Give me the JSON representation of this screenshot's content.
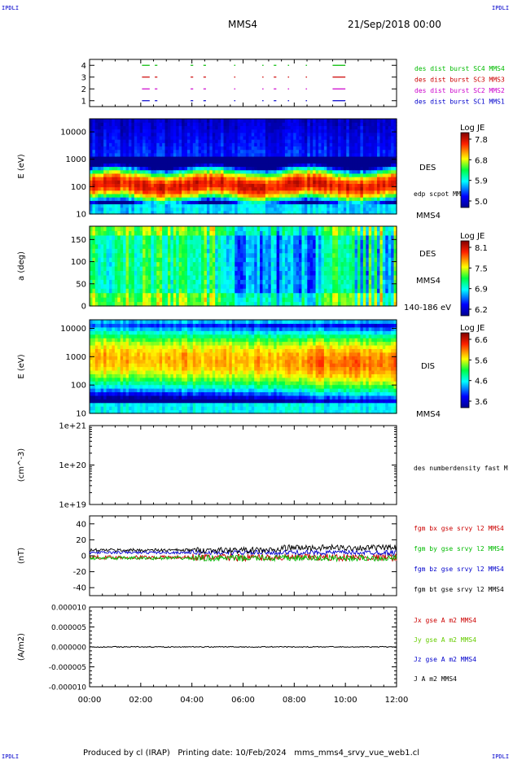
{
  "header": {
    "corner_tl": "IPDLI",
    "corner_tr": "IPDLI",
    "corner_bl": "IPDLI",
    "corner_br": "IPDLI",
    "mission": "MMS4",
    "date": "21/Sep/2018 00:00"
  },
  "footer": {
    "text": "Produced by cl (IRAP)   Printing date: 10/Feb/2024   mms_mms4_srvy_vue_web1.cl"
  },
  "x_ticks": [
    "00:00",
    "02:00",
    "04:00",
    "06:00",
    "08:00",
    "10:00",
    "12:00"
  ],
  "colors": {
    "mms1": "#0000cc",
    "mms2": "#cc00cc",
    "mms3": "#cc0000",
    "mms4": "#00bb00",
    "bt": "#000000",
    "jy": "#66cc00"
  },
  "chart_data": [
    {
      "id": "burst",
      "type": "line",
      "ylabel": "",
      "yticks": [
        "1",
        "2",
        "3",
        "4"
      ],
      "ylim": [
        0.5,
        4.5
      ],
      "series": [
        {
          "name": "des dist burst SC1 MMS1",
          "y": 1
        },
        {
          "name": "des dist burst SC2 MMS2",
          "y": 2
        },
        {
          "name": "des dist burst SC3 MMS3",
          "y": 3
        },
        {
          "name": "des dist burst SC4 MMS4",
          "y": 4
        }
      ],
      "intervals_hours": [
        [
          2.05,
          2.35
        ],
        [
          2.55,
          2.65
        ],
        [
          3.95,
          4.05
        ],
        [
          4.45,
          4.55
        ],
        [
          5.65,
          5.7
        ],
        [
          6.75,
          6.8
        ],
        [
          7.2,
          7.3
        ],
        [
          7.75,
          7.8
        ],
        [
          8.45,
          8.5
        ],
        [
          9.5,
          10.0
        ]
      ]
    },
    {
      "id": "des_energy",
      "type": "heatmap",
      "ylabel": "E (eV)",
      "yscale": "log",
      "ylim": [
        10,
        30000
      ],
      "yticks": [
        "10",
        "100",
        "1000",
        "10000"
      ],
      "labels": [
        "DES",
        "edp scpot MMS4",
        "MMS4"
      ],
      "colorbar": {
        "title": "Log JE",
        "ticks": [
          "7.8",
          "6.8",
          "5.9",
          "5.0"
        ],
        "range": [
          5.0,
          7.8
        ]
      }
    },
    {
      "id": "des_pitch",
      "type": "heatmap",
      "ylabel": "a (deg)",
      "ylim": [
        0,
        180
      ],
      "yticks": [
        "0",
        "50",
        "100",
        "150"
      ],
      "labels": [
        "DES",
        "MMS4",
        "140-186 eV"
      ],
      "colorbar": {
        "title": "Log JE",
        "ticks": [
          "8.1",
          "7.5",
          "6.9",
          "6.2"
        ],
        "range": [
          6.2,
          8.1
        ]
      }
    },
    {
      "id": "dis_energy",
      "type": "heatmap",
      "ylabel": "E (eV)",
      "yscale": "log",
      "ylim": [
        10,
        20000
      ],
      "yticks": [
        "10",
        "100",
        "1000",
        "10000"
      ],
      "labels": [
        "DIS",
        "MMS4"
      ],
      "colorbar": {
        "title": "Log JE",
        "ticks": [
          "6.6",
          "5.6",
          "4.6",
          "3.6"
        ],
        "range": [
          3.6,
          6.6
        ]
      }
    },
    {
      "id": "density",
      "type": "line",
      "ylabel": "(cm^-3)",
      "yscale": "log",
      "yticks": [
        "1e+19",
        "1e+20",
        "1e+21"
      ],
      "ylim": [
        1e+19,
        1e+21
      ],
      "series": [
        {
          "name": "des numberdensity fast M",
          "values": []
        }
      ]
    },
    {
      "id": "fgm",
      "type": "line",
      "ylabel": "(nT)",
      "ylim": [
        -50,
        50
      ],
      "yticks": [
        "-40",
        "-20",
        "0",
        "20",
        "40"
      ],
      "series": [
        {
          "name": "fgm bx gse srvy l2 MMS4",
          "mean": -2,
          "noise": 3
        },
        {
          "name": "fgm by gse srvy l2 MMS4",
          "mean": -3,
          "noise": 2.5
        },
        {
          "name": "fgm bz gse srvy l2 MMS4",
          "mean": 4,
          "noise": 2
        },
        {
          "name": "fgm bt gse srvy l2 MMS4",
          "mean": 7,
          "noise": 2.5
        }
      ]
    },
    {
      "id": "current",
      "type": "line",
      "ylabel": "(A/m2)",
      "ylim": [
        -1e-05,
        1e-05
      ],
      "yticks": [
        "-0.000010",
        "-0.000005",
        "0.000000",
        "0.000005",
        "0.000010"
      ],
      "series": [
        {
          "name": "Jx gse A m2 MMS4"
        },
        {
          "name": "Jy gse A m2 MMS4"
        },
        {
          "name": "Jz gse A m2 MMS4"
        },
        {
          "name": "J A m2 MMS4"
        }
      ]
    }
  ]
}
